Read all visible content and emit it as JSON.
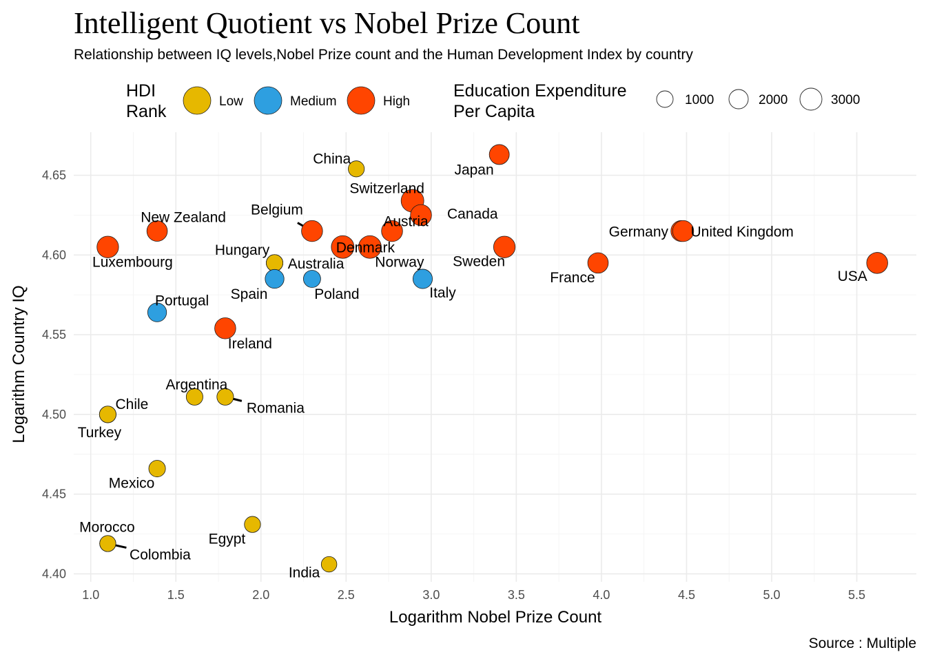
{
  "chart_data": {
    "type": "scatter",
    "title": "Intelligent Quotient vs Nobel Prize Count",
    "subtitle": "Relationship between IQ levels,Nobel Prize count and the Human Development Index by country",
    "xlabel": "Logarithm Nobel Prize Count",
    "ylabel": "Logarithm Country IQ",
    "caption": "Source : Multiple",
    "xlim": [
      0.9,
      5.85
    ],
    "ylim": [
      4.395,
      4.677
    ],
    "x_ticks": [
      "1.0",
      "1.5",
      "2.0",
      "2.5",
      "3.0",
      "3.5",
      "4.0",
      "4.5",
      "5.0",
      "5.5"
    ],
    "y_ticks": [
      "4.40",
      "4.45",
      "4.50",
      "4.55",
      "4.60",
      "4.65"
    ],
    "grid": true,
    "legend_position": "top",
    "color_legend": {
      "title": "HDI\nRank",
      "items": [
        {
          "label": "Low",
          "color": "#E6B800"
        },
        {
          "label": "Medium",
          "color": "#2E9FE0"
        },
        {
          "label": "High",
          "color": "#FF4500"
        }
      ]
    },
    "size_legend": {
      "title": "Education Expenditure\nPer Capita",
      "items": [
        {
          "label": "1000",
          "value": 1000
        },
        {
          "label": "2000",
          "value": 2000
        },
        {
          "label": "3000",
          "value": 3000
        }
      ]
    },
    "points": [
      {
        "country": "China",
        "x": 2.56,
        "y": 4.654,
        "hdi": "Low",
        "size": 0.4
      },
      {
        "country": "Japan",
        "x": 3.4,
        "y": 4.663,
        "hdi": "High",
        "size": 0.75
      },
      {
        "country": "Switzerland",
        "x": 2.89,
        "y": 4.634,
        "hdi": "High",
        "size": 1.0
      },
      {
        "country": "Canada",
        "x": 2.94,
        "y": 4.625,
        "hdi": "High",
        "size": 0.85
      },
      {
        "country": "Austria",
        "x": 2.77,
        "y": 4.615,
        "hdi": "High",
        "size": 0.85
      },
      {
        "country": "Belgium",
        "x": 2.3,
        "y": 4.615,
        "hdi": "High",
        "size": 0.85
      },
      {
        "country": "Denmark",
        "x": 2.48,
        "y": 4.605,
        "hdi": "High",
        "size": 1.0
      },
      {
        "country": "Norway",
        "x": 2.64,
        "y": 4.605,
        "hdi": "High",
        "size": 1.0
      },
      {
        "country": "Sweden",
        "x": 3.43,
        "y": 4.605,
        "hdi": "High",
        "size": 0.9
      },
      {
        "country": "New Zealand",
        "x": 1.39,
        "y": 4.615,
        "hdi": "High",
        "size": 0.8
      },
      {
        "country": "Luxembourg",
        "x": 1.1,
        "y": 4.605,
        "hdi": "High",
        "size": 0.9
      },
      {
        "country": "Germany",
        "x": 4.47,
        "y": 4.615,
        "hdi": "High",
        "size": 0.85
      },
      {
        "country": "United Kingdom",
        "x": 4.48,
        "y": 4.615,
        "hdi": "High",
        "size": 0.85
      },
      {
        "country": "France",
        "x": 3.98,
        "y": 4.595,
        "hdi": "High",
        "size": 0.8
      },
      {
        "country": "USA",
        "x": 5.62,
        "y": 4.595,
        "hdi": "High",
        "size": 0.85
      },
      {
        "country": "Hungary",
        "x": 2.08,
        "y": 4.595,
        "hdi": "Low",
        "size": 0.45
      },
      {
        "country": "Australia",
        "x": 2.08,
        "y": 4.595,
        "hdi": "Low",
        "size": 0.45
      },
      {
        "country": "Spain",
        "x": 2.08,
        "y": 4.585,
        "hdi": "Medium",
        "size": 0.65
      },
      {
        "country": "Poland",
        "x": 2.3,
        "y": 4.585,
        "hdi": "Medium",
        "size": 0.5
      },
      {
        "country": "Italy",
        "x": 2.95,
        "y": 4.585,
        "hdi": "Medium",
        "size": 0.7
      },
      {
        "country": "Portugal",
        "x": 1.39,
        "y": 4.564,
        "hdi": "Medium",
        "size": 0.65
      },
      {
        "country": "Ireland",
        "x": 1.79,
        "y": 4.554,
        "hdi": "High",
        "size": 0.85
      },
      {
        "country": "Argentina",
        "x": 1.61,
        "y": 4.511,
        "hdi": "Low",
        "size": 0.45
      },
      {
        "country": "Romania",
        "x": 1.79,
        "y": 4.511,
        "hdi": "Low",
        "size": 0.45
      },
      {
        "country": "Chile",
        "x": 1.1,
        "y": 4.5,
        "hdi": "Low",
        "size": 0.45
      },
      {
        "country": "Turkey",
        "x": 1.1,
        "y": 4.5,
        "hdi": "Low",
        "size": 0.45
      },
      {
        "country": "Mexico",
        "x": 1.39,
        "y": 4.466,
        "hdi": "Low",
        "size": 0.45
      },
      {
        "country": "Egypt",
        "x": 1.95,
        "y": 4.431,
        "hdi": "Low",
        "size": 0.4
      },
      {
        "country": "Morocco",
        "x": 1.1,
        "y": 4.419,
        "hdi": "Low",
        "size": 0.4
      },
      {
        "country": "Colombia",
        "x": 1.1,
        "y": 4.419,
        "hdi": "Low",
        "size": 0.4
      },
      {
        "country": "India",
        "x": 2.4,
        "y": 4.406,
        "hdi": "Low",
        "size": 0.35
      }
    ]
  }
}
